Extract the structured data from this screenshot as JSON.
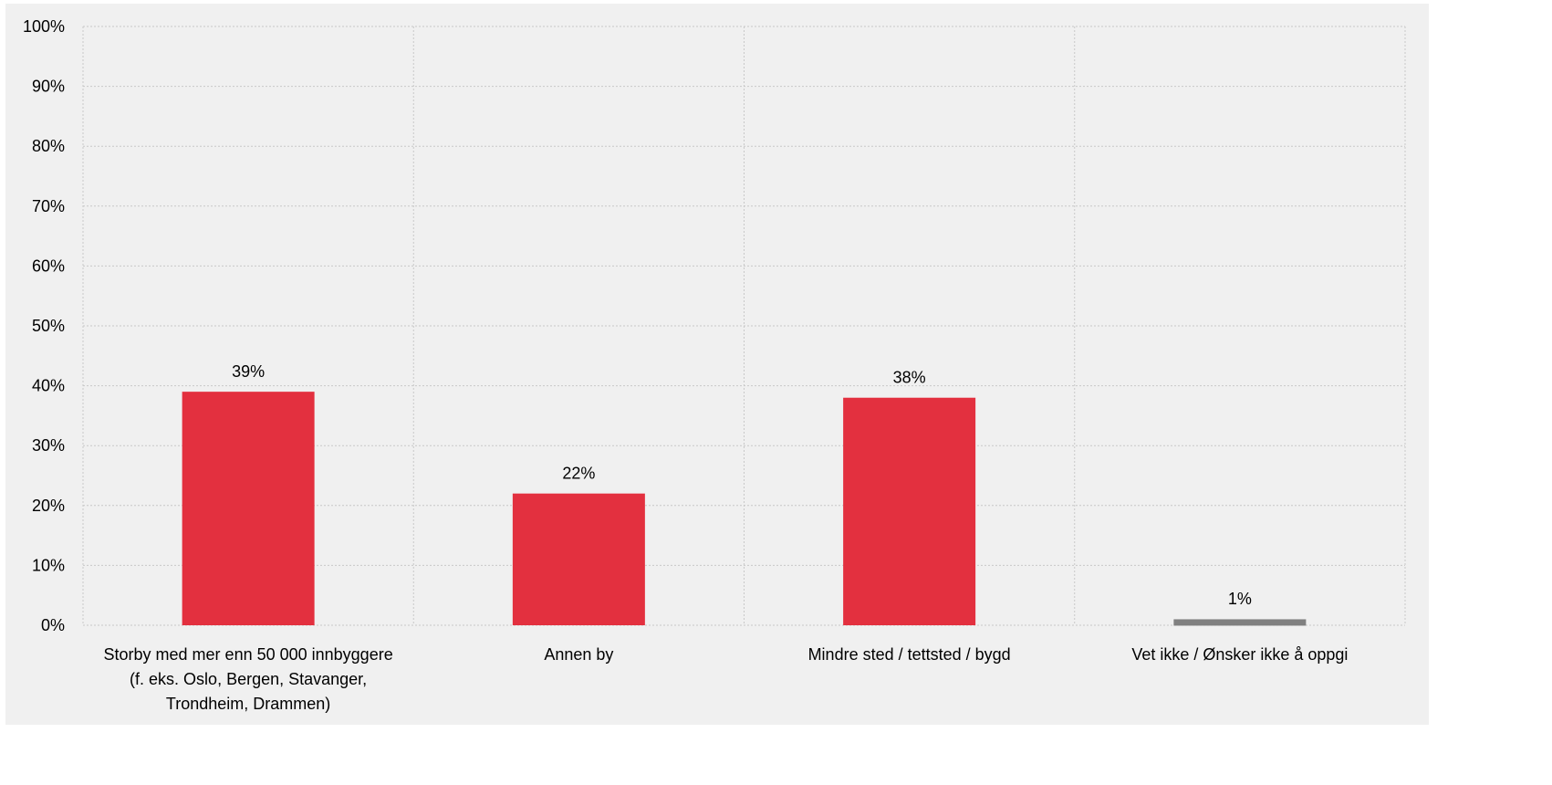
{
  "chart_data": {
    "type": "bar",
    "categories": [
      [
        "Storby med mer enn 50 000 innbyggere",
        "(f. eks. Oslo, Bergen, Stavanger,",
        "Trondheim, Drammen)"
      ],
      [
        "Annen by"
      ],
      [
        "Mindre sted / tettsted / bygd"
      ],
      [
        "Vet ikke / Ønsker ikke å oppgi"
      ]
    ],
    "values": [
      39,
      22,
      38,
      1
    ],
    "data_labels": [
      "39%",
      "22%",
      "38%",
      "1%"
    ],
    "bar_colors": [
      "#e3303f",
      "#e3303f",
      "#e3303f",
      "#808080"
    ],
    "ylim": [
      0,
      100
    ],
    "yticks": [
      0,
      10,
      20,
      30,
      40,
      50,
      60,
      70,
      80,
      90,
      100
    ],
    "ytick_labels": [
      "0%",
      "10%",
      "20%",
      "30%",
      "40%",
      "50%",
      "60%",
      "70%",
      "80%",
      "90%",
      "100%"
    ],
    "grid": true,
    "background": "#f0f0f0"
  }
}
